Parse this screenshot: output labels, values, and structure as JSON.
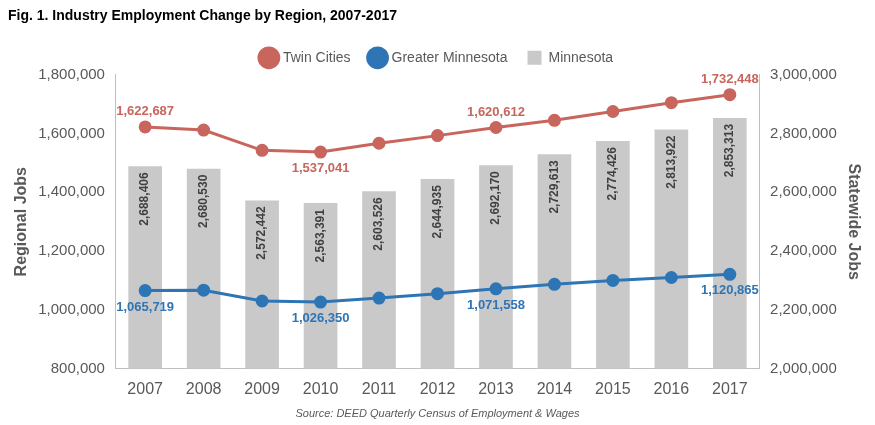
{
  "chart_data": {
    "type": "bar",
    "title": "Fig. 1. Industry Employment Change by Region, 2007-2017",
    "source": "Source: DEED Quarterly Census of Employment & Wages",
    "y_label": "Regional Jobs",
    "y2_label": "Statewide Jobs",
    "categories": [
      "2007",
      "2008",
      "2009",
      "2010",
      "2011",
      "2012",
      "2013",
      "2014",
      "2015",
      "2016",
      "2017"
    ],
    "series": [
      {
        "name": "Minnesota",
        "type": "bar",
        "axis": "y2",
        "color": "#c9c9c9",
        "values": [
          2688406,
          2680530,
          2572442,
          2563391,
          2603526,
          2644935,
          2692170,
          2729613,
          2774426,
          2813922,
          2853313
        ],
        "value_labels": [
          "2,688,406",
          "2,680,530",
          "2,572,442",
          "2,563,391",
          "2,603,526",
          "2,644,935",
          "2,692,170",
          "2,729,613",
          "2,774,426",
          "2,813,922",
          "2,853,313"
        ]
      },
      {
        "name": "Twin Cities",
        "type": "line",
        "color": "#c8655d",
        "marker": "circle",
        "values": [
          1622687,
          1612000,
          1543000,
          1537041,
          1567000,
          1593000,
          1620612,
          1645000,
          1675000,
          1705000,
          1732448
        ],
        "value_labels": [
          "1,622,687",
          null,
          null,
          "1,537,041",
          null,
          null,
          "1,620,612",
          null,
          null,
          null,
          "1,732,448"
        ]
      },
      {
        "name": "Greater Minnesota",
        "type": "line",
        "color": "#2e75b6",
        "marker": "circle",
        "values": [
          1065719,
          1067000,
          1030000,
          1026350,
          1040000,
          1055000,
          1071558,
          1087000,
          1100000,
          1110000,
          1120865
        ],
        "value_labels": [
          "1,065,719",
          null,
          null,
          "1,026,350",
          null,
          null,
          "1,071,558",
          null,
          null,
          null,
          "1,120,865"
        ]
      }
    ],
    "ylim": [
      800000,
      1800000
    ],
    "yticks": [
      {
        "value": 800000,
        "label": "800,000"
      },
      {
        "value": 1000000,
        "label": "1,000,000"
      },
      {
        "value": 1200000,
        "label": "1,200,000"
      },
      {
        "value": 1400000,
        "label": "1,400,000"
      },
      {
        "value": 1600000,
        "label": "1,600,000"
      },
      {
        "value": 1800000,
        "label": "1,800,000"
      }
    ],
    "y2lim": [
      2000000,
      3000000
    ],
    "y2ticks": [
      {
        "value": 2000000,
        "label": "2,000,000"
      },
      {
        "value": 2200000,
        "label": "2,200,000"
      },
      {
        "value": 2400000,
        "label": "2,400,000"
      },
      {
        "value": 2600000,
        "label": "2,600,000"
      },
      {
        "value": 2800000,
        "label": "2,800,000"
      },
      {
        "value": 3000000,
        "label": "3,000,000"
      }
    ],
    "grid": false,
    "legend": "top",
    "data_labels": true
  }
}
